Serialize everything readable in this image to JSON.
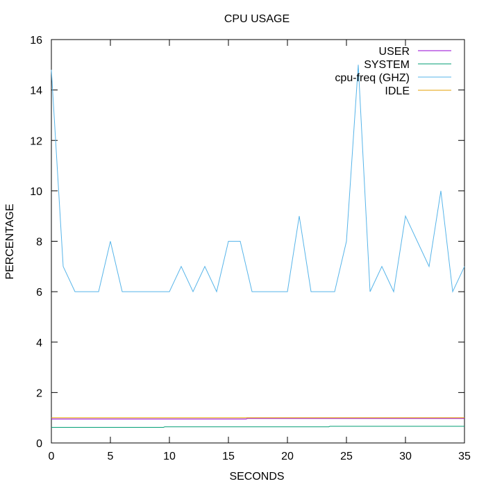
{
  "chart_data": {
    "type": "line",
    "title": "CPU USAGE",
    "xlabel": "SECONDS",
    "ylabel": "PERCENTAGE",
    "xlim": [
      0,
      35
    ],
    "ylim": [
      0,
      16
    ],
    "xticks": [
      0,
      5,
      10,
      15,
      20,
      25,
      30,
      35
    ],
    "yticks": [
      0,
      2,
      4,
      6,
      8,
      10,
      12,
      14,
      16
    ],
    "grid": false,
    "legend_position": "top-right",
    "series": [
      {
        "name": "USER",
        "color": "#9400d3",
        "x": [
          0,
          16.5,
          16.6,
          35
        ],
        "values": [
          0.95,
          0.95,
          0.97,
          0.97
        ]
      },
      {
        "name": "SYSTEM",
        "color": "#009e73",
        "x": [
          0,
          9.5,
          9.6,
          23.5,
          23.6,
          35
        ],
        "values": [
          0.62,
          0.62,
          0.64,
          0.64,
          0.66,
          0.66
        ]
      },
      {
        "name": "cpu-freq (GHZ)",
        "color": "#56b4e9",
        "x": [
          0,
          1,
          2,
          3,
          4,
          5,
          6,
          7,
          8,
          9,
          10,
          11,
          12,
          13,
          14,
          15,
          16,
          17,
          18,
          19,
          20,
          21,
          22,
          23,
          24,
          25,
          26,
          27,
          28,
          29,
          30,
          31,
          32,
          33,
          34,
          35
        ],
        "values": [
          14.8,
          7,
          6,
          6,
          6,
          8,
          6,
          6,
          6,
          6,
          6,
          7,
          6,
          7,
          6,
          8,
          8,
          6,
          6,
          6,
          6,
          9,
          6,
          6,
          6,
          8,
          15,
          6,
          7,
          6,
          9,
          8,
          7,
          10,
          6,
          7
        ]
      },
      {
        "name": "IDLE",
        "color": "#e69f00",
        "x": [
          0,
          35
        ],
        "values": [
          1.0,
          1.0
        ]
      }
    ]
  }
}
